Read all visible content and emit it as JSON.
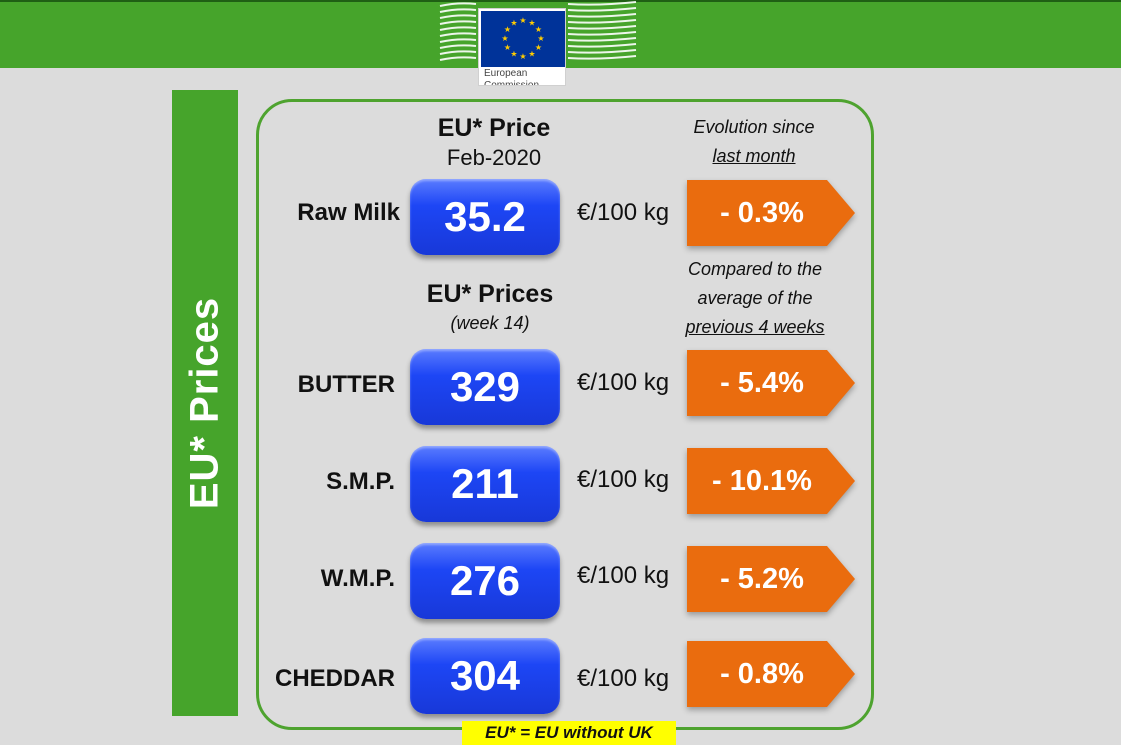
{
  "header": {
    "logo_text": "European Commission",
    "colors": {
      "green": "#46a42b",
      "eu_blue": "#003399",
      "eu_star": "#ffcc00"
    }
  },
  "side_title": "EU* Prices",
  "monthly": {
    "title": "EU* Price",
    "period": "Feb-2020",
    "evolution_note_line1": "Evolution since",
    "evolution_note_line2": "last month"
  },
  "weekly": {
    "title": "EU* Prices",
    "period": "(week 14)",
    "compare_note_line1": "Compared to the",
    "compare_note_line2": "average of the",
    "compare_note_line3": "previous 4 weeks"
  },
  "rows": [
    {
      "label": "Raw Milk",
      "price": "35.2",
      "unit": "€/100 kg",
      "change": "- 0.3%"
    },
    {
      "label": "BUTTER",
      "price": "329",
      "unit": "€/100 kg",
      "change": "- 5.4%"
    },
    {
      "label": "S.M.P.",
      "price": "211",
      "unit": "€/100 kg",
      "change": "- 10.1%"
    },
    {
      "label": "W.M.P.",
      "price": "276",
      "unit": "€/100 kg",
      "change": "- 5.2%"
    },
    {
      "label": "CHEDDAR",
      "price": "304",
      "unit": "€/100 kg",
      "change": "- 0.8%"
    }
  ],
  "colors": {
    "price_pill": "#1d46f5",
    "change_arrow": "#ea6c0e",
    "panel_border": "#4ea32f",
    "footnote_bg": "#ffff00"
  },
  "footnote": "EU* = EU without UK"
}
